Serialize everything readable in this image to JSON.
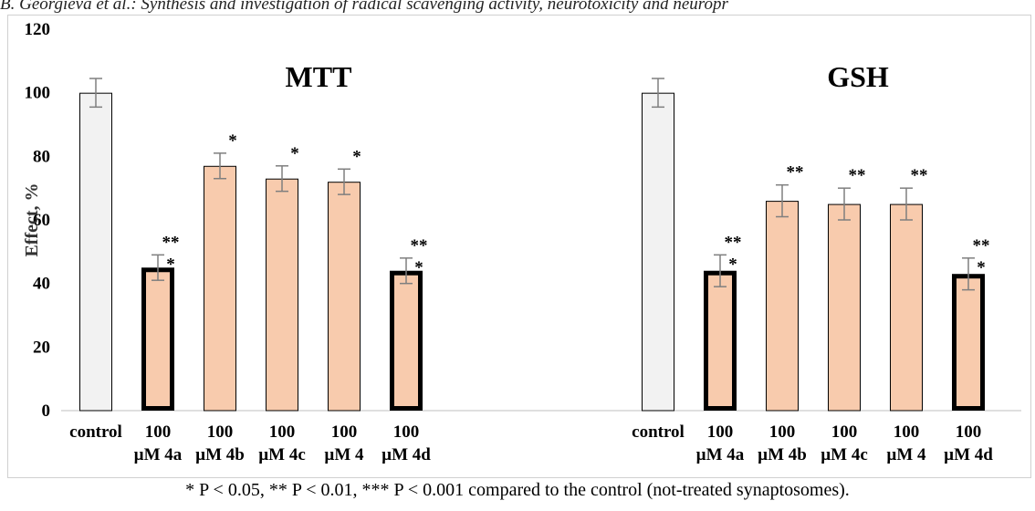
{
  "header_text": "B. Georgieva et al.: Synthesis and investigation of radical scavenging activity, neurotoxicity and neuropr",
  "footnote": "* P < 0.05, ** P < 0.01, *** P < 0.001 compared to the control (not-treated synaptosomes).",
  "chart_data": {
    "type": "bar",
    "ylabel": "Effect, %",
    "ylim": [
      0,
      120
    ],
    "yticks": [
      0,
      20,
      40,
      60,
      80,
      100,
      120
    ],
    "grid": false,
    "colors": {
      "control": "#f2f2f2",
      "treated": "#f8cbad",
      "edge": "#000000",
      "error": "#7f7f7f"
    },
    "panels": [
      {
        "title": "MTT",
        "categories": [
          [
            "control"
          ],
          [
            "100",
            "µM 4a"
          ],
          [
            "100",
            "µM 4b"
          ],
          [
            "100",
            "µM 4c"
          ],
          [
            "100",
            "µM 4"
          ],
          [
            "100",
            "µM 4d"
          ]
        ],
        "values": [
          100,
          45,
          77,
          73,
          72,
          44
        ],
        "errors": [
          4.5,
          4,
          4,
          4,
          4,
          4
        ],
        "bold_outline": [
          false,
          true,
          false,
          false,
          false,
          true
        ],
        "significance": [
          "",
          "**\n*",
          "*",
          "*",
          "*",
          "**\n*"
        ]
      },
      {
        "title": "GSH",
        "categories": [
          [
            "control"
          ],
          [
            "100",
            "µM 4a"
          ],
          [
            "100",
            "µM 4b"
          ],
          [
            "100",
            "µM 4c"
          ],
          [
            "100",
            "µM 4"
          ],
          [
            "100",
            "µM 4d"
          ]
        ],
        "values": [
          100,
          44,
          66,
          65,
          65,
          43
        ],
        "errors": [
          4.5,
          5,
          5,
          5,
          5,
          5
        ],
        "bold_outline": [
          false,
          true,
          false,
          false,
          false,
          true
        ],
        "significance": [
          "",
          "**\n*",
          "**",
          "**",
          "**",
          "**\n*"
        ]
      }
    ]
  }
}
